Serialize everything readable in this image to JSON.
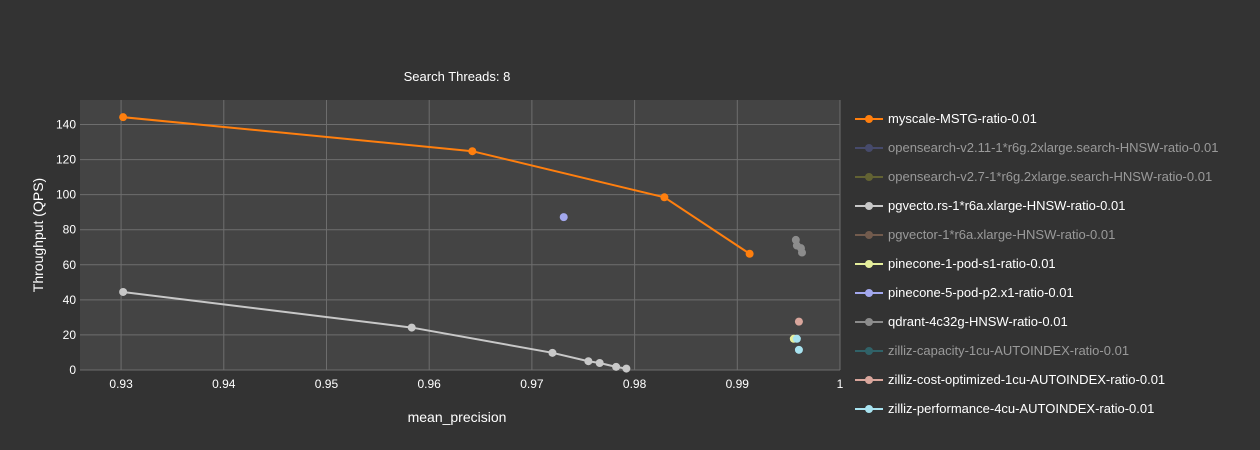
{
  "chart_data": {
    "type": "scatter",
    "title": "Search Threads: 8",
    "xlabel": "mean_precision",
    "ylabel": "Throughput (QPS)",
    "xlim": [
      0.926,
      1.0
    ],
    "ylim": [
      0,
      154
    ],
    "x_ticks": [
      0.93,
      0.94,
      0.95,
      0.96,
      0.97,
      0.98,
      0.99,
      1.0
    ],
    "x_tick_labels": [
      "0.93",
      "0.94",
      "0.95",
      "0.96",
      "0.97",
      "0.98",
      "0.99",
      "1"
    ],
    "y_ticks": [
      0,
      20,
      40,
      60,
      80,
      100,
      120,
      140
    ],
    "y_tick_labels": [
      "0",
      "20",
      "40",
      "60",
      "80",
      "100",
      "120",
      "140"
    ],
    "grid": true,
    "legend_position": "right",
    "series": [
      {
        "name": "myscale-MSTG-ratio-0.01",
        "color": "#ff7f0e",
        "mode": "lines+markers",
        "visible": true,
        "x": [
          0.9302,
          0.9642,
          0.9829,
          0.9912
        ],
        "y": [
          144.2,
          124.8,
          98.5,
          66.3
        ]
      },
      {
        "name": "opensearch-v2.11-1*r6g.2xlarge.search-HNSW-ratio-0.01",
        "color": "#565d99",
        "mode": "lines+markers",
        "visible": false,
        "x": [],
        "y": []
      },
      {
        "name": "opensearch-v2.7-1*r6g.2xlarge.search-HNSW-ratio-0.01",
        "color": "#8a8a33",
        "mode": "lines+markers",
        "visible": false,
        "x": [],
        "y": []
      },
      {
        "name": "pgvecto.rs-1*r6a.xlarge-HNSW-ratio-0.01",
        "color": "#c8c8c8",
        "mode": "lines+markers",
        "visible": true,
        "x": [
          0.9302,
          0.9583,
          0.972,
          0.9755,
          0.9766,
          0.9782,
          0.9792
        ],
        "y": [
          44.5,
          24.2,
          9.8,
          5.0,
          4.0,
          1.8,
          0.8
        ]
      },
      {
        "name": "pgvector-1*r6a.xlarge-HNSW-ratio-0.01",
        "color": "#a67d63",
        "mode": "lines+markers",
        "visible": false,
        "x": [],
        "y": []
      },
      {
        "name": "pinecone-1-pod-s1-ratio-0.01",
        "color": "#e5ee9c",
        "mode": "markers",
        "visible": true,
        "x": [
          0.9955
        ],
        "y": [
          17.8
        ]
      },
      {
        "name": "pinecone-5-pod-p2.x1-ratio-0.01",
        "color": "#a3a8ee",
        "mode": "markers",
        "visible": true,
        "x": [
          0.9731
        ],
        "y": [
          87.2
        ]
      },
      {
        "name": "qdrant-4c32g-HNSW-ratio-0.01",
        "color": "#8c8c8c",
        "mode": "markers",
        "visible": true,
        "x": [
          0.9957,
          0.9958,
          0.9962,
          0.9963
        ],
        "y": [
          74.2,
          71.0,
          69.5,
          67.0
        ]
      },
      {
        "name": "zilliz-capacity-1cu-AUTOINDEX-ratio-0.01",
        "color": "#2f8a94",
        "mode": "lines+markers",
        "visible": false,
        "x": [],
        "y": []
      },
      {
        "name": "zilliz-cost-optimized-1cu-AUTOINDEX-ratio-0.01",
        "color": "#d9a69c",
        "mode": "markers",
        "visible": true,
        "x": [
          0.996
        ],
        "y": [
          27.6
        ]
      },
      {
        "name": "zilliz-performance-4cu-AUTOINDEX-ratio-0.01",
        "color": "#a8e3f0",
        "mode": "markers",
        "visible": true,
        "x": [
          0.9958,
          0.996
        ],
        "y": [
          17.8,
          11.5
        ]
      }
    ]
  }
}
